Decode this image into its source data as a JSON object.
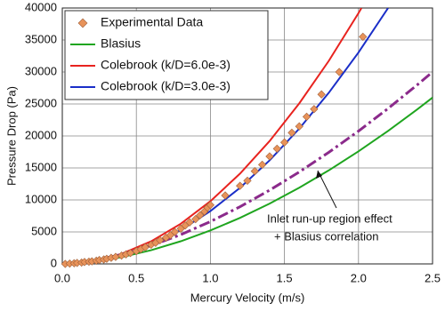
{
  "chart_data": {
    "type": "scatter-line",
    "xlabel": "Mercury Velocity  (m/s)",
    "ylabel": "Pressure  Drop (Pa)",
    "xlim": [
      0,
      2.5
    ],
    "ylim": [
      0,
      40000
    ],
    "xticks": [
      {
        "value": 0,
        "label": "0.0"
      },
      0.5,
      {
        "value": 1,
        "label": "1.0"
      },
      1.5,
      {
        "value": 2,
        "label": "2.0"
      },
      2.5
    ],
    "yticks": [
      0,
      5000,
      10000,
      15000,
      20000,
      25000,
      30000,
      35000,
      40000
    ],
    "grid": true,
    "legend": "upper left",
    "annotation": [
      "Inlet run-up region effect",
      "+ Blasius correlation"
    ],
    "series": [
      {
        "name": "Experimental Data",
        "type": "scatter",
        "color": "#e8935a",
        "x": [
          0.02,
          0.05,
          0.08,
          0.1,
          0.13,
          0.15,
          0.18,
          0.2,
          0.23,
          0.25,
          0.28,
          0.3,
          0.33,
          0.36,
          0.4,
          0.43,
          0.46,
          0.5,
          0.53,
          0.56,
          0.6,
          0.63,
          0.66,
          0.7,
          0.73,
          0.76,
          0.8,
          0.83,
          0.86,
          0.9,
          0.93,
          0.96,
          0.98,
          1.0,
          1.1,
          1.2,
          1.25,
          1.3,
          1.35,
          1.4,
          1.45,
          1.5,
          1.55,
          1.6,
          1.65,
          1.7,
          1.75,
          1.87,
          2.03
        ],
        "values": [
          0,
          50,
          100,
          150,
          200,
          300,
          350,
          400,
          500,
          600,
          700,
          800,
          950,
          1100,
          1300,
          1500,
          1700,
          2000,
          2300,
          2600,
          3000,
          3300,
          3700,
          4100,
          4500,
          5000,
          5500,
          6000,
          6500,
          7000,
          7600,
          8200,
          8800,
          9200,
          10700,
          12200,
          13000,
          14500,
          15500,
          16800,
          18000,
          19000,
          20500,
          21500,
          23000,
          24200,
          26500,
          30000,
          35500
        ]
      },
      {
        "name": "Blasius",
        "type": "line",
        "color": "#1fa51f",
        "x": [
          0,
          0.2,
          0.4,
          0.6,
          0.8,
          1.0,
          1.2,
          1.4,
          1.6,
          1.8,
          2.0,
          2.2,
          2.4,
          2.5
        ],
        "values": [
          0,
          313,
          1053,
          2140,
          3541,
          5230,
          7197,
          9425,
          11908,
          14630,
          17594,
          20787,
          24206,
          26000
        ]
      },
      {
        "name": "Colebrook (k/D=6.0e-3)",
        "type": "line",
        "color": "#e8231f",
        "x": [
          0,
          0.2,
          0.4,
          0.6,
          0.8,
          1.0,
          1.2,
          1.4,
          1.6,
          1.8,
          2.0,
          2.02
        ],
        "values": [
          0,
          392,
          1568,
          3528,
          6272,
          9800,
          14112,
          19208,
          25088,
          31752,
          39200,
          40000
        ]
      },
      {
        "name": "Colebrook (k/D=3.0e-3)",
        "type": "line",
        "color": "#1a2ec8",
        "x": [
          0,
          0.2,
          0.4,
          0.6,
          0.8,
          1.0,
          1.2,
          1.4,
          1.6,
          1.8,
          2.0,
          2.2
        ],
        "values": [
          0,
          330,
          1322,
          2974,
          5286,
          8260,
          11894,
          16190,
          21146,
          26762,
          33040,
          40000
        ]
      },
      {
        "type": "line",
        "color": "#8b2a8b",
        "linestyle": "dashdot",
        "x": [
          0,
          0.2,
          0.4,
          0.6,
          0.8,
          1.0,
          1.2,
          1.4,
          1.6,
          1.8,
          2.0,
          2.2,
          2.4,
          2.5
        ],
        "values": [
          0,
          465,
          1459,
          2848,
          4578,
          6614,
          8937,
          11527,
          14365,
          17447,
          20761,
          24297,
          28047,
          30000
        ]
      }
    ]
  }
}
